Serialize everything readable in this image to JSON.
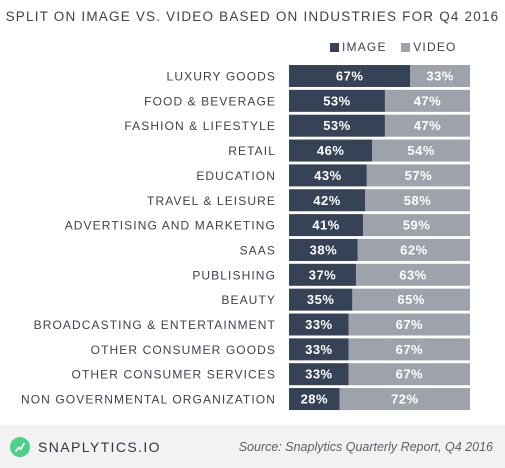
{
  "title": "SPLIT ON IMAGE VS. VIDEO BASED ON INDUSTRIES FOR Q4 2016",
  "legend": {
    "image": "IMAGE",
    "video": "VIDEO"
  },
  "colors": {
    "image": "#364256",
    "video": "#9ea3ab",
    "brand": "#4cd08a"
  },
  "footer": {
    "brand": "SNAPLYTICS.IO",
    "source": "Source: Snaplytics Quarterly Report, Q4 2016",
    "logo_icon": "snaplytics-logo-icon"
  },
  "chart_data": {
    "type": "bar",
    "orientation": "horizontal",
    "stacked": true,
    "percent_stacked": true,
    "categories": [
      "LUXURY GOODS",
      "FOOD & BEVERAGE",
      "FASHION & LIFESTYLE",
      "RETAIL",
      "EDUCATION",
      "TRAVEL & LEISURE",
      "ADVERTISING AND MARKETING",
      "SAAS",
      "PUBLISHING",
      "BEAUTY",
      "BROADCASTING & ENTERTAINMENT",
      "OTHER CONSUMER GOODS",
      "OTHER CONSUMER SERVICES",
      "NON GOVERNMENTAL ORGANIZATION"
    ],
    "series": [
      {
        "name": "IMAGE",
        "values": [
          67,
          53,
          53,
          46,
          43,
          42,
          41,
          38,
          37,
          35,
          33,
          33,
          33,
          28
        ]
      },
      {
        "name": "VIDEO",
        "values": [
          33,
          47,
          47,
          54,
          57,
          58,
          59,
          62,
          63,
          65,
          67,
          67,
          67,
          72
        ]
      }
    ],
    "value_suffix": "%",
    "xlim": [
      0,
      100
    ],
    "grid": false,
    "legend_position": "top-right"
  }
}
